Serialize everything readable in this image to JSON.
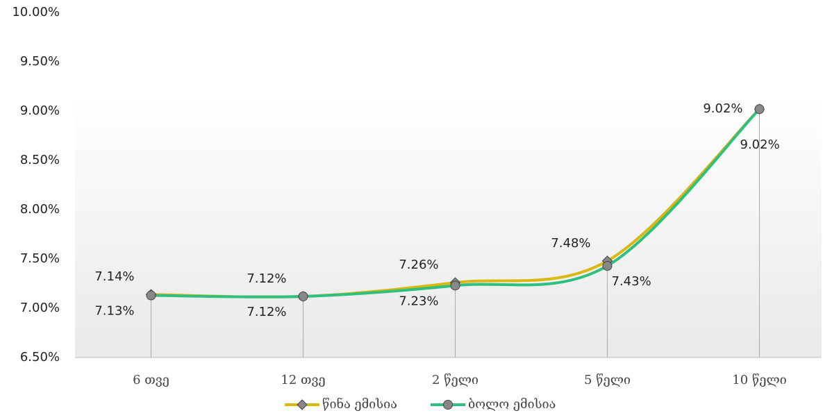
{
  "chart_data": {
    "type": "line",
    "categories": [
      "6 თვე",
      "12 თვე",
      "2 წელი",
      "5 წელი",
      "10 წელი"
    ],
    "series": [
      {
        "name": "წინა ემისია",
        "color": "#d9b910",
        "marker": "diamond",
        "values": [
          7.14,
          7.12,
          7.26,
          7.48,
          9.02
        ],
        "value_labels": [
          "7.14%",
          "7.12%",
          "7.26%",
          "7.48%",
          "9.02%"
        ]
      },
      {
        "name": "ბოლო ემისია",
        "color": "#2fbf7f",
        "marker": "circle",
        "values": [
          7.13,
          7.12,
          7.23,
          7.43,
          9.02
        ],
        "value_labels": [
          "7.13%",
          "7.12%",
          "7.23%",
          "7.43%",
          "9.02%"
        ]
      }
    ],
    "ylim": [
      6.5,
      10
    ],
    "yticks": [
      {
        "value": 6.5,
        "label": "6.50%"
      },
      {
        "value": 7,
        "label": "7.00%"
      },
      {
        "value": 7.5,
        "label": "7.50%"
      },
      {
        "value": 8,
        "label": "8.00%"
      },
      {
        "value": 8.5,
        "label": "8.50%"
      },
      {
        "value": 9,
        "label": "9.00%"
      },
      {
        "value": 9.5,
        "label": "9.50%"
      },
      {
        "value": 10,
        "label": "10.00%"
      }
    ],
    "grid": false,
    "legend": "bottom"
  }
}
